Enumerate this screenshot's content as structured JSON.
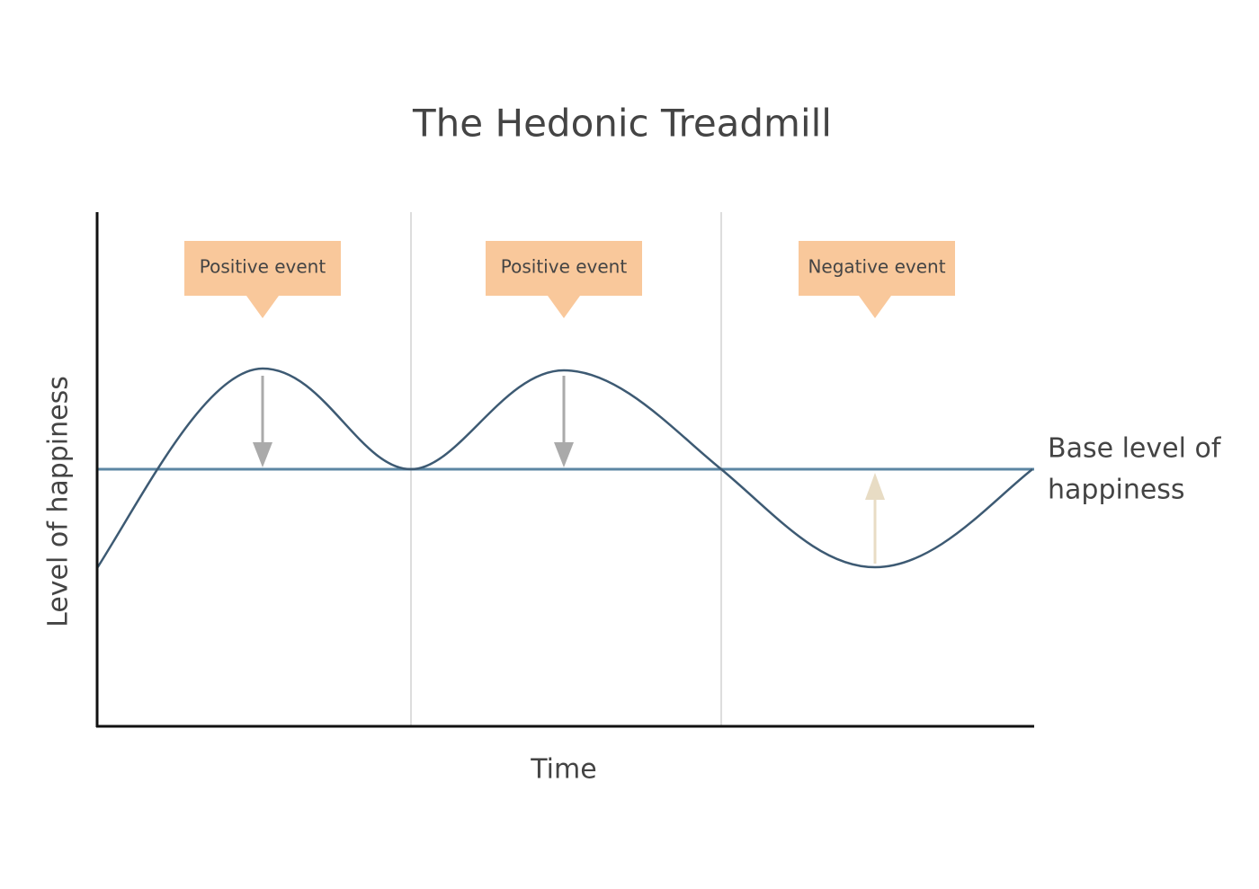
{
  "title": "The Hedonic Treadmill",
  "axes": {
    "y_label": "Level of happiness",
    "x_label": "Time"
  },
  "events": [
    {
      "label": "Positive event"
    },
    {
      "label": "Positive event"
    },
    {
      "label": "Negative event"
    }
  ],
  "baseline": {
    "label_lines": [
      "Base level of",
      "happiness"
    ]
  }
}
